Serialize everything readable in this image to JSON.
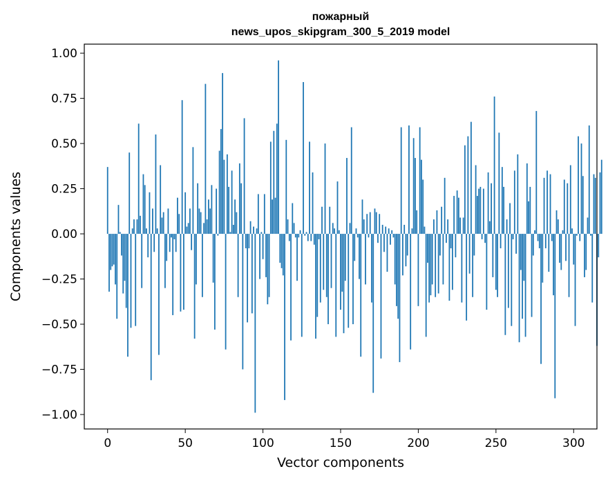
{
  "chart_data": {
    "type": "bar",
    "title": "пожарный",
    "subtitle": "news_upos_skipgram_300_5_2019 model",
    "xlabel": "Vector components",
    "ylabel": "Components values",
    "xlim": [
      -15,
      315
    ],
    "ylim": [
      -1.08,
      1.05
    ],
    "xticks": [
      0,
      50,
      100,
      150,
      200,
      250,
      300
    ],
    "yticks": [
      -1.0,
      -0.75,
      -0.5,
      -0.25,
      0.0,
      0.25,
      0.5,
      0.75,
      1.0
    ],
    "xtick_labels": [
      "0",
      "50",
      "100",
      "150",
      "200",
      "250",
      "300"
    ],
    "ytick_labels": [
      "−1.00",
      "−0.75",
      "−0.50",
      "−0.25",
      "0.00",
      "0.25",
      "0.50",
      "0.75",
      "1.00"
    ],
    "color": "#1f77b4",
    "values": [
      0.37,
      -0.32,
      -0.2,
      -0.18,
      -0.17,
      -0.28,
      -0.47,
      0.16,
      0.01,
      -0.12,
      -0.33,
      -0.26,
      -0.41,
      -0.68,
      0.45,
      -0.52,
      0.03,
      0.08,
      -0.51,
      0.08,
      0.61,
      0.1,
      -0.3,
      0.33,
      0.27,
      0.03,
      -0.13,
      0.23,
      -0.81,
      0.14,
      -0.1,
      0.55,
      0.03,
      -0.67,
      0.38,
      0.09,
      0.12,
      -0.3,
      -0.15,
      0.14,
      -0.1,
      -0.02,
      -0.45,
      -0.03,
      -0.1,
      0.2,
      0.11,
      -0.43,
      0.74,
      -0.42,
      0.23,
      0.04,
      0.06,
      0.14,
      -0.09,
      0.48,
      -0.58,
      -0.28,
      0.28,
      0.14,
      0.12,
      -0.35,
      0.06,
      0.83,
      0.08,
      0.19,
      0.14,
      0.27,
      -0.27,
      -0.53,
      0.25,
      -0.01,
      0.46,
      0.58,
      0.89,
      0.41,
      -0.64,
      0.44,
      0.26,
      0.01,
      0.35,
      0.05,
      0.19,
      0.12,
      -0.35,
      0.39,
      0.28,
      -0.75,
      0.64,
      -0.08,
      -0.49,
      -0.08,
      0.07,
      -0.44,
      0.04,
      -0.99,
      0.03,
      0.22,
      -0.25,
      0.01,
      -0.14,
      0.22,
      -0.24,
      -0.39,
      -0.35,
      0.51,
      0.19,
      0.57,
      0.2,
      0.61,
      0.96,
      -0.16,
      -0.19,
      -0.23,
      -0.92,
      0.52,
      0.08,
      -0.04,
      -0.59,
      0.17,
      0.06,
      -0.02,
      -0.26,
      -0.02,
      0.02,
      -0.57,
      0.84,
      -0.01,
      0.01,
      -0.04,
      0.51,
      -0.04,
      0.34,
      -0.06,
      -0.58,
      -0.46,
      -0.03,
      -0.38,
      0.15,
      -0.31,
      0.5,
      -0.35,
      -0.5,
      0.15,
      -0.3,
      0.06,
      0.03,
      -0.57,
      0.29,
      0.02,
      -0.42,
      -0.32,
      -0.55,
      -0.26,
      0.42,
      -0.52,
      0.06,
      0.59,
      -0.5,
      -0.15,
      0.03,
      -0.02,
      -0.25,
      -0.68,
      0.19,
      0.08,
      -0.28,
      0.11,
      -0.02,
      0.12,
      -0.38,
      -0.88,
      0.14,
      0.12,
      -0.05,
      0.11,
      -0.69,
      0.05,
      -0.1,
      0.04,
      -0.21,
      0.03,
      -0.06,
      0.02,
      -0.02,
      -0.28,
      -0.4,
      -0.47,
      -0.71,
      0.59,
      -0.23,
      0.05,
      -0.18,
      -0.12,
      0.6,
      -0.64,
      0.03,
      0.53,
      0.42,
      0.13,
      -0.4,
      0.59,
      0.41,
      0.3,
      0.04,
      -0.57,
      -0.16,
      -0.38,
      -0.34,
      -0.28,
      0.08,
      -0.35,
      0.13,
      -0.33,
      -0.12,
      0.15,
      -0.28,
      0.31,
      -0.05,
      0.08,
      -0.37,
      -0.08,
      -0.31,
      0.21,
      -0.13,
      0.24,
      0.2,
      0.09,
      -0.38,
      0.09,
      0.49,
      -0.48,
      0.54,
      -0.22,
      0.62,
      -0.35,
      -0.12,
      0.38,
      0.21,
      0.25,
      0.26,
      -0.03,
      0.25,
      -0.05,
      -0.42,
      0.34,
      0.07,
      0.28,
      -0.24,
      0.76,
      -0.31,
      -0.35,
      0.56,
      -0.08,
      0.37,
      0.26,
      -0.56,
      0.08,
      -0.41,
      0.17,
      -0.51,
      -0.03,
      0.35,
      -0.11,
      0.44,
      -0.6,
      -0.2,
      -0.47,
      -0.26,
      -0.57,
      0.39,
      0.18,
      0.26,
      -0.46,
      -0.12,
      0.02,
      0.68,
      -0.04,
      -0.08,
      -0.72,
      -0.27,
      0.31,
      -0.08,
      0.35,
      -0.21,
      0.33,
      -0.04,
      -0.34,
      -0.91,
      0.13,
      0.08,
      -0.16,
      -0.2,
      0.02,
      0.3,
      -0.15,
      0.28,
      -0.35,
      0.38,
      0.03,
      -0.17,
      -0.51,
      -0.01,
      0.54,
      -0.04,
      0.5,
      0.32,
      -0.24,
      -0.2,
      0.09,
      0.6,
      -0.01,
      -0.38,
      0.33,
      0.31,
      -0.62,
      -0.13,
      0.34,
      0.41
    ]
  }
}
